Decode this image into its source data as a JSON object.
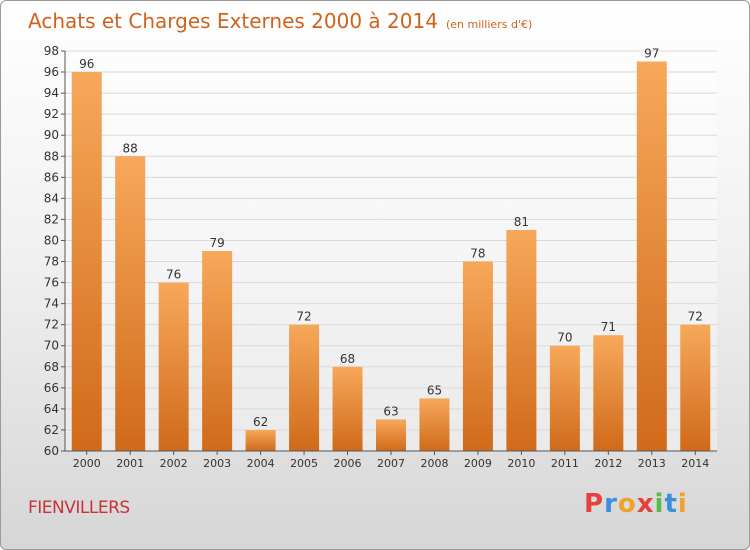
{
  "header": {
    "title": "Achats et Charges Externes 2000 à 2014",
    "subtitle": "(en milliers d'€)"
  },
  "footer": {
    "commune": "FIENVILLERS",
    "logo_text": "Proxiti"
  },
  "colors": {
    "bar_light": "#f7a85a",
    "bar_dark": "#d06a1a",
    "title": "#d0621c",
    "commune": "#c8323c"
  },
  "chart_data": {
    "type": "bar",
    "title": "Achats et Charges Externes 2000 à 2014",
    "subtitle": "(en milliers d'€)",
    "categories": [
      "2000",
      "2001",
      "2002",
      "2003",
      "2004",
      "2005",
      "2006",
      "2007",
      "2008",
      "2009",
      "2010",
      "2011",
      "2012",
      "2013",
      "2014"
    ],
    "values": [
      96,
      88,
      76,
      79,
      62,
      72,
      68,
      63,
      65,
      78,
      81,
      70,
      71,
      97,
      72
    ],
    "ylim": [
      60,
      98
    ],
    "yticks": [
      60,
      62,
      64,
      66,
      68,
      70,
      72,
      74,
      76,
      78,
      80,
      82,
      84,
      86,
      88,
      90,
      92,
      94,
      96,
      98
    ],
    "grid": true,
    "legend": "none"
  }
}
